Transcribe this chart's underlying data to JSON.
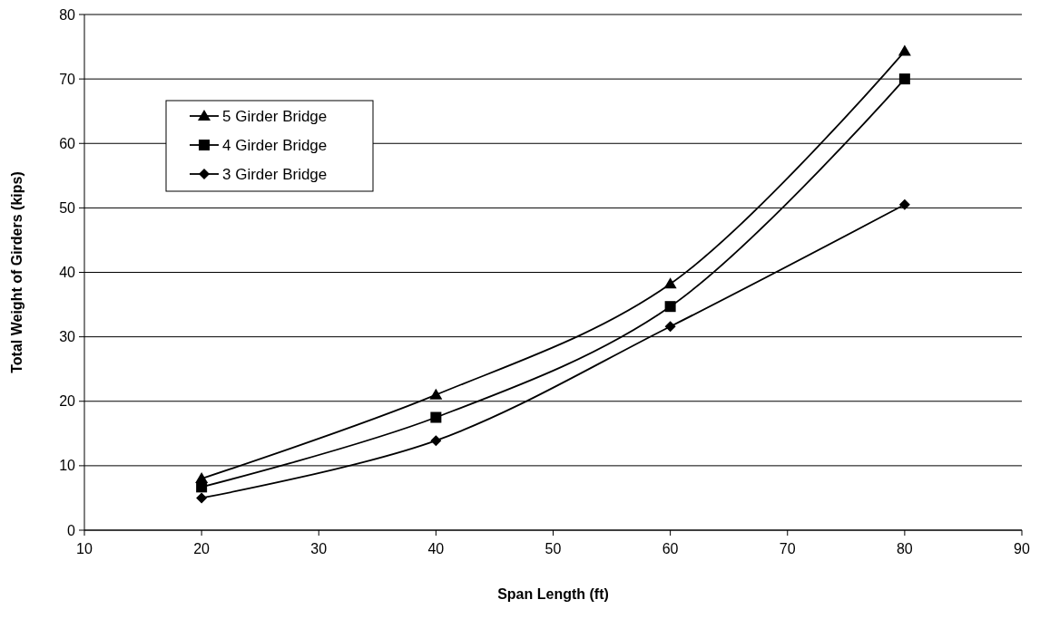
{
  "chart_data": {
    "type": "line",
    "xlabel": "Span Length (ft)",
    "ylabel": "Total Weight of Girders (kips)",
    "x": [
      20,
      40,
      60,
      80
    ],
    "series": [
      {
        "name": "5 Girder Bridge",
        "color": "#000000",
        "marker": "triangle",
        "values": [
          8.0,
          21.0,
          38.2,
          74.3
        ]
      },
      {
        "name": "4 Girder Bridge",
        "color": "#000000",
        "marker": "square",
        "values": [
          6.7,
          17.5,
          34.7,
          70.0
        ]
      },
      {
        "name": "3 Girder Bridge",
        "color": "#000000",
        "marker": "diamond",
        "values": [
          5.0,
          13.9,
          31.6,
          50.5
        ]
      }
    ],
    "xlim": [
      10,
      90
    ],
    "xticks": [
      10,
      20,
      30,
      40,
      50,
      60,
      70,
      80,
      90
    ],
    "ylim": [
      0,
      80
    ],
    "yticks": [
      0,
      10,
      20,
      30,
      40,
      50,
      60,
      70,
      80
    ],
    "grid": "y",
    "legend": "top left",
    "line_style": "solid"
  }
}
